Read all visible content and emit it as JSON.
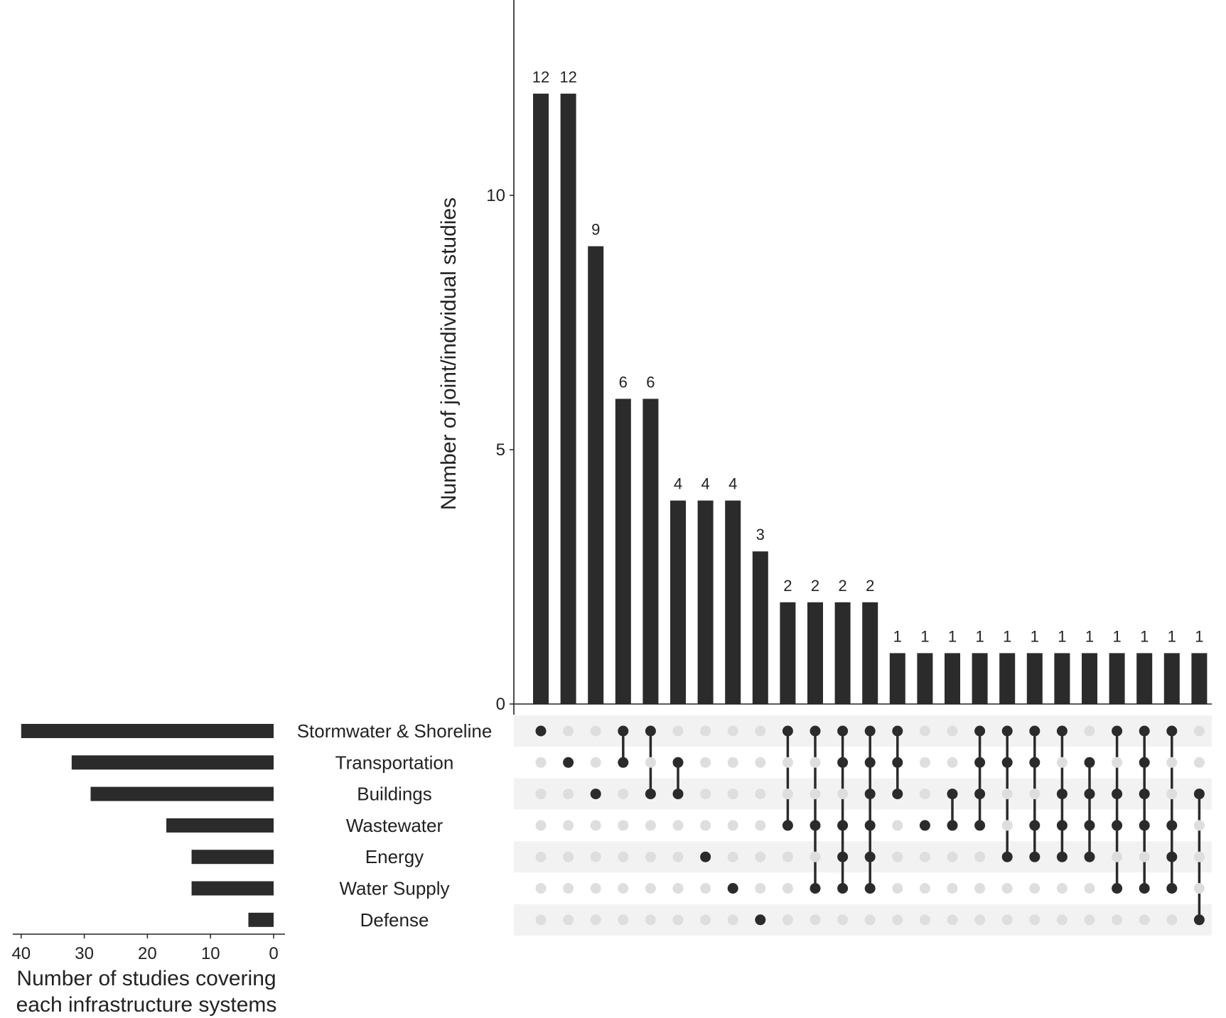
{
  "chart_data": {
    "type": "bar",
    "intersections": {
      "ylabel": "Number of joint/individual studies",
      "ylim": [
        0,
        13
      ],
      "yticks": [
        0,
        5,
        10
      ],
      "values": [
        12,
        12,
        9,
        6,
        6,
        4,
        4,
        4,
        3,
        2,
        2,
        2,
        2,
        1,
        1,
        1,
        1,
        1,
        1,
        1,
        1,
        1,
        1,
        1,
        1
      ],
      "value_labels": [
        "12",
        "12",
        "9",
        "6",
        "6",
        "4",
        "4",
        "4",
        "3",
        "2",
        "2",
        "2",
        "2",
        "1",
        "1",
        "1",
        "1",
        "1",
        "1",
        "1",
        "1",
        "1",
        "1",
        "1",
        "1"
      ],
      "memberships": [
        [
          "Stormwater & Shoreline"
        ],
        [
          "Transportation"
        ],
        [
          "Buildings"
        ],
        [
          "Stormwater & Shoreline",
          "Transportation"
        ],
        [
          "Stormwater & Shoreline",
          "Buildings"
        ],
        [
          "Transportation",
          "Buildings"
        ],
        [
          "Energy"
        ],
        [
          "Water Supply"
        ],
        [
          "Defense"
        ],
        [
          "Stormwater & Shoreline",
          "Wastewater"
        ],
        [
          "Stormwater & Shoreline",
          "Wastewater",
          "Water Supply"
        ],
        [
          "Stormwater & Shoreline",
          "Transportation",
          "Wastewater",
          "Energy",
          "Water Supply"
        ],
        [
          "Stormwater & Shoreline",
          "Transportation",
          "Buildings",
          "Wastewater",
          "Energy",
          "Water Supply"
        ],
        [
          "Stormwater & Shoreline",
          "Transportation",
          "Buildings"
        ],
        [
          "Wastewater"
        ],
        [
          "Buildings",
          "Wastewater"
        ],
        [
          "Stormwater & Shoreline",
          "Transportation",
          "Buildings",
          "Wastewater"
        ],
        [
          "Stormwater & Shoreline",
          "Transportation",
          "Energy"
        ],
        [
          "Stormwater & Shoreline",
          "Transportation",
          "Wastewater",
          "Energy"
        ],
        [
          "Stormwater & Shoreline",
          "Buildings",
          "Wastewater",
          "Energy"
        ],
        [
          "Transportation",
          "Buildings",
          "Wastewater",
          "Energy"
        ],
        [
          "Stormwater & Shoreline",
          "Buildings",
          "Wastewater",
          "Water Supply"
        ],
        [
          "Stormwater & Shoreline",
          "Transportation",
          "Buildings",
          "Wastewater",
          "Water Supply"
        ],
        [
          "Stormwater & Shoreline",
          "Wastewater",
          "Energy",
          "Water Supply"
        ],
        [
          "Buildings",
          "Defense"
        ]
      ]
    },
    "sets": {
      "names": [
        "Stormwater & Shoreline",
        "Transportation",
        "Buildings",
        "Wastewater",
        "Energy",
        "Water Supply",
        "Defense"
      ],
      "values": [
        40,
        32,
        29,
        17,
        13,
        13,
        4
      ],
      "xlabel_lines": [
        "Number of studies covering",
        "each infrastructure systems"
      ],
      "xlim": [
        0,
        41
      ],
      "xticks": [
        40,
        30,
        20,
        10,
        0
      ]
    },
    "colors": {
      "bar": "#2b2b2b",
      "dot_active": "#2b2b2b",
      "dot_inactive": "#dedede",
      "stripe": "#f2f2f2",
      "axis": "#222222"
    }
  }
}
